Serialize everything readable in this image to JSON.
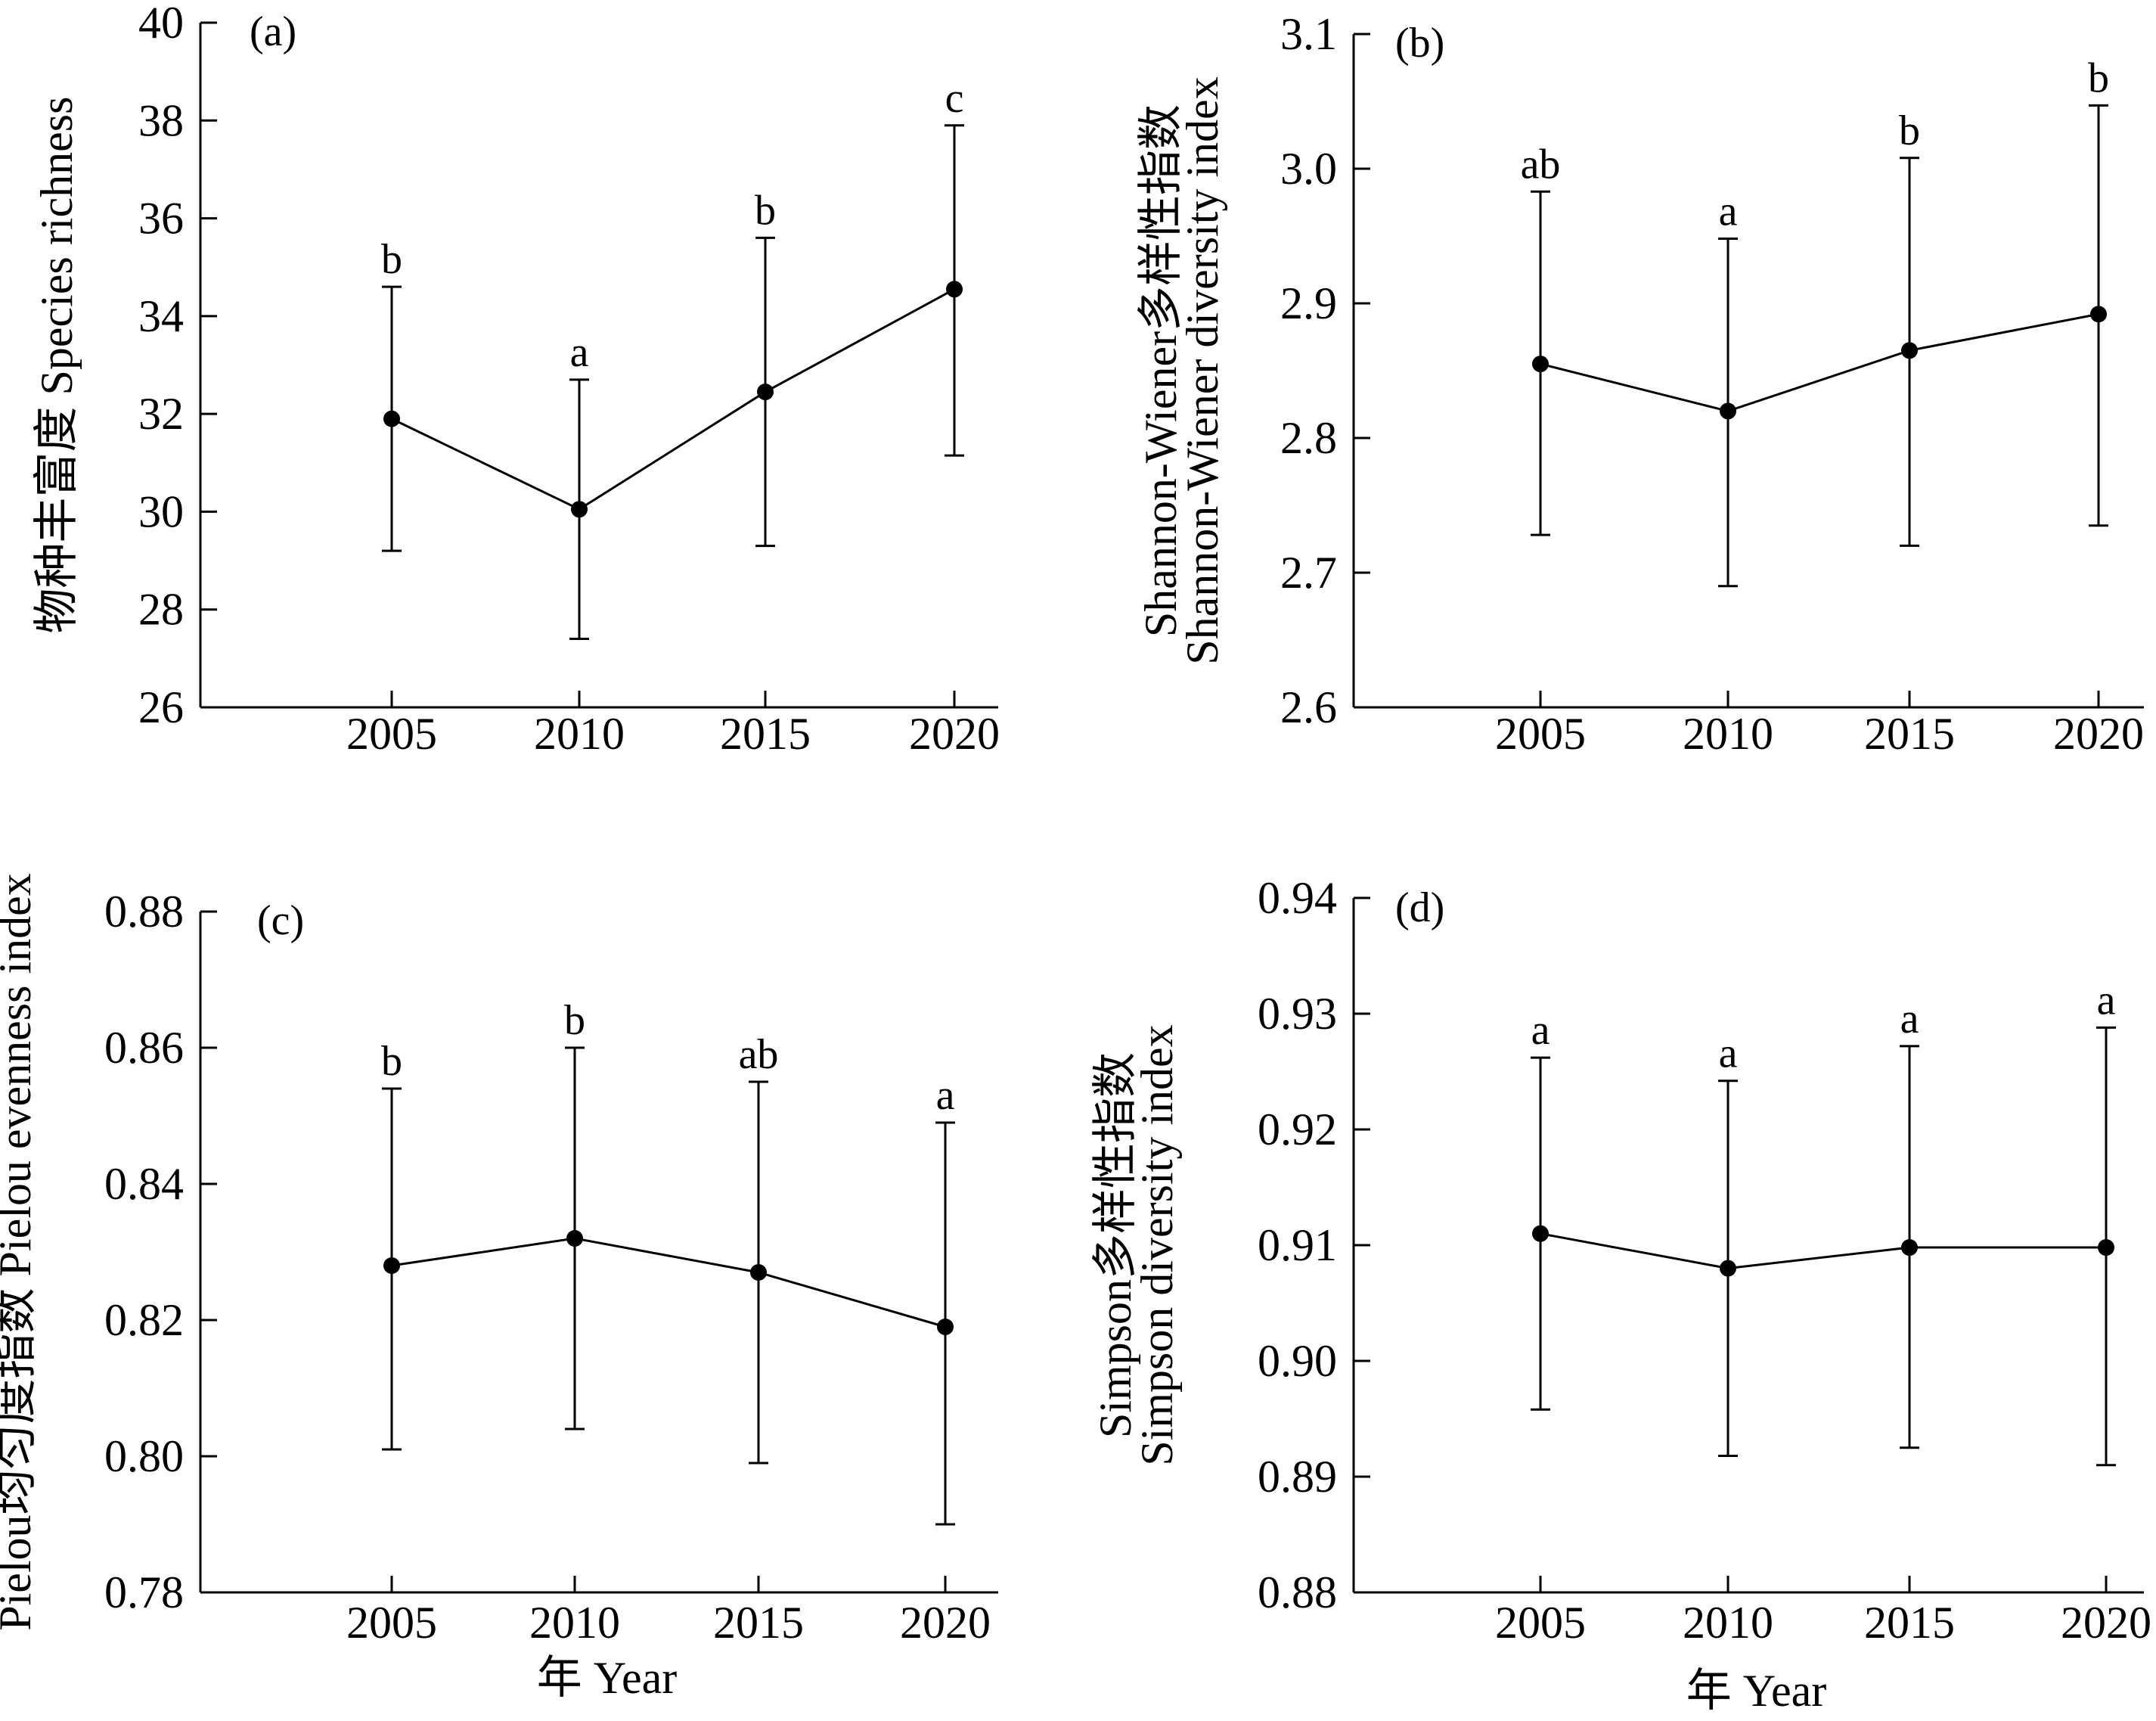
{
  "chart_data": [
    {
      "panel": "(a)",
      "type": "line",
      "ylabel": "物种丰富度 Species richness",
      "xlabel": "",
      "x": [
        "2005",
        "2010",
        "2015",
        "2020"
      ],
      "y": [
        31.9,
        30.05,
        32.45,
        34.55
      ],
      "err_low": [
        29.2,
        27.4,
        29.3,
        31.15
      ],
      "err_high": [
        34.6,
        32.7,
        35.6,
        37.9
      ],
      "sig": [
        "b",
        "a",
        "b",
        "c"
      ],
      "ylim": [
        26,
        40
      ],
      "yticks": [
        "26",
        "28",
        "30",
        "32",
        "34",
        "36",
        "38",
        "40"
      ]
    },
    {
      "panel": "(b)",
      "type": "line",
      "ylabel": "Shannon-Wiener多样性指数|Shannon-Wiener diversity index",
      "xlabel": "",
      "x": [
        "2005",
        "2010",
        "2015",
        "2020"
      ],
      "y": [
        2.855,
        2.82,
        2.865,
        2.892
      ],
      "err_low": [
        2.728,
        2.69,
        2.72,
        2.735
      ],
      "err_high": [
        2.983,
        2.948,
        3.008,
        3.047
      ],
      "sig": [
        "ab",
        "a",
        "b",
        "b"
      ],
      "ylim": [
        2.6,
        3.1
      ],
      "yticks": [
        "2.6",
        "2.7",
        "2.8",
        "2.9",
        "3.0",
        "3.1"
      ]
    },
    {
      "panel": "(c)",
      "type": "line",
      "ylabel": "Pielou均匀度指数 Pielou evenness index",
      "xlabel": "年 Year",
      "x": [
        "2005",
        "2010",
        "2015",
        "2020"
      ],
      "y": [
        0.828,
        0.832,
        0.827,
        0.819
      ],
      "err_low": [
        0.801,
        0.804,
        0.799,
        0.79
      ],
      "err_high": [
        0.854,
        0.86,
        0.855,
        0.849
      ],
      "sig": [
        "b",
        "b",
        "ab",
        "a"
      ],
      "ylim": [
        0.78,
        0.88
      ],
      "yticks": [
        "0.78",
        "0.80",
        "0.82",
        "0.84",
        "0.86",
        "0.88"
      ]
    },
    {
      "panel": "(d)",
      "type": "line",
      "ylabel": "Simpson多样性指数|Simpson diversity index",
      "xlabel": "年 Year",
      "x": [
        "2005",
        "2010",
        "2015",
        "2020"
      ],
      "y": [
        0.911,
        0.908,
        0.9098,
        0.9098
      ],
      "err_low": [
        0.8958,
        0.8918,
        0.8925,
        0.891
      ],
      "err_high": [
        0.9262,
        0.9242,
        0.9272,
        0.9288
      ],
      "sig": [
        "a",
        "a",
        "a",
        "a"
      ],
      "ylim": [
        0.88,
        0.94
      ],
      "yticks": [
        "0.88",
        "0.89",
        "0.90",
        "0.91",
        "0.92",
        "0.93",
        "0.94"
      ]
    }
  ]
}
